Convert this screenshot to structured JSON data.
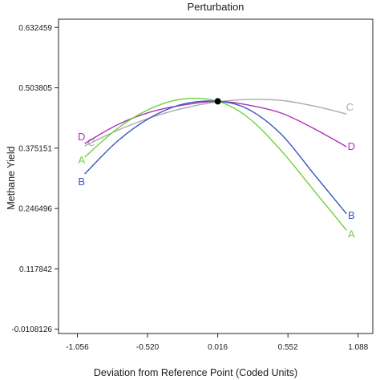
{
  "chart_data": {
    "type": "line",
    "title": "Perturbation",
    "xlabel": "Deviation from Reference Point (Coded Units)",
    "ylabel": "Methane Yield",
    "xlim": [
      -1.2,
      1.2
    ],
    "ylim": [
      -0.02,
      0.65
    ],
    "x_tick_labels": [
      "-1.056",
      "-0.520",
      "0.016",
      "0.552",
      "1.088"
    ],
    "x_ticks": [
      -1.056,
      -0.52,
      0.016,
      0.552,
      1.088
    ],
    "y_tick_labels": [
      "0.632459",
      "0.503805",
      "0.375151",
      "0.246496",
      "0.117842",
      "-0.0108126"
    ],
    "y_ticks": [
      0.632459,
      0.503805,
      0.375151,
      0.246496,
      0.117842,
      -0.0108126
    ],
    "reference_point": {
      "x": 0.016,
      "y": 0.475
    },
    "grid": false,
    "series": [
      {
        "name": "A",
        "color": "#6ad23c",
        "x": [
          -1.0,
          -0.75,
          -0.5,
          -0.25,
          0.016,
          0.25,
          0.5,
          0.75,
          1.0
        ],
        "y": [
          0.356,
          0.417,
          0.459,
          0.48,
          0.475,
          0.44,
          0.37,
          0.285,
          0.2
        ]
      },
      {
        "name": "B",
        "color": "#3b56c4",
        "x": [
          -1.0,
          -0.75,
          -0.5,
          -0.25,
          0.016,
          0.25,
          0.5,
          0.75,
          1.0
        ],
        "y": [
          0.32,
          0.39,
          0.44,
          0.469,
          0.475,
          0.458,
          0.405,
          0.32,
          0.235
        ]
      },
      {
        "name": "C",
        "color": "#aaaaaa",
        "x": [
          -1.0,
          -0.75,
          -0.5,
          -0.25,
          0.016,
          0.25,
          0.5,
          0.75,
          1.0
        ],
        "y": [
          0.38,
          0.413,
          0.44,
          0.46,
          0.474,
          0.479,
          0.477,
          0.465,
          0.448
        ]
      },
      {
        "name": "D",
        "color": "#b02fb8",
        "x": [
          -1.0,
          -0.75,
          -0.5,
          -0.25,
          0.016,
          0.25,
          0.5,
          0.75,
          1.0
        ],
        "y": [
          0.385,
          0.425,
          0.452,
          0.467,
          0.475,
          0.467,
          0.45,
          0.417,
          0.378
        ]
      }
    ]
  }
}
